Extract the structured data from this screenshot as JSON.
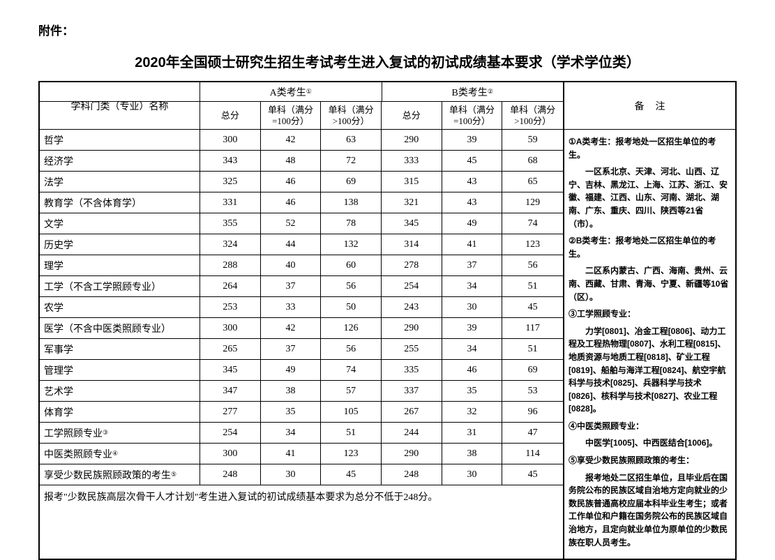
{
  "attachment_label": "附件：",
  "title": "2020年全国硕士研究生招生考试考生进入复试的初试成绩基本要求（学术学位类）",
  "header": {
    "major": "学科门类（专业）名称",
    "group_a": "A类考生",
    "group_a_sup": "①",
    "group_b": "B类考生",
    "group_b_sup": "②",
    "total": "总分",
    "sub100_l1": "单科（满分",
    "sub100_l2": "=100分）",
    "subgt100_l1": "单科（满分",
    "subgt100_l2": ">100分）",
    "remarks": "备注"
  },
  "rows": [
    {
      "major": "哲学",
      "a_total": "300",
      "a_s1": "42",
      "a_s2": "63",
      "b_total": "290",
      "b_s1": "39",
      "b_s2": "59"
    },
    {
      "major": "经济学",
      "a_total": "343",
      "a_s1": "48",
      "a_s2": "72",
      "b_total": "333",
      "b_s1": "45",
      "b_s2": "68"
    },
    {
      "major": "法学",
      "a_total": "325",
      "a_s1": "46",
      "a_s2": "69",
      "b_total": "315",
      "b_s1": "43",
      "b_s2": "65"
    },
    {
      "major": "教育学（不含体育学）",
      "a_total": "331",
      "a_s1": "46",
      "a_s2": "138",
      "b_total": "321",
      "b_s1": "43",
      "b_s2": "129"
    },
    {
      "major": "文学",
      "a_total": "355",
      "a_s1": "52",
      "a_s2": "78",
      "b_total": "345",
      "b_s1": "49",
      "b_s2": "74"
    },
    {
      "major": "历史学",
      "a_total": "324",
      "a_s1": "44",
      "a_s2": "132",
      "b_total": "314",
      "b_s1": "41",
      "b_s2": "123"
    },
    {
      "major": "理学",
      "a_total": "288",
      "a_s1": "40",
      "a_s2": "60",
      "b_total": "278",
      "b_s1": "37",
      "b_s2": "56"
    },
    {
      "major": "工学（不含工学照顾专业）",
      "a_total": "264",
      "a_s1": "37",
      "a_s2": "56",
      "b_total": "254",
      "b_s1": "34",
      "b_s2": "51"
    },
    {
      "major": "农学",
      "a_total": "253",
      "a_s1": "33",
      "a_s2": "50",
      "b_total": "243",
      "b_s1": "30",
      "b_s2": "45"
    },
    {
      "major": "医学（不含中医类照顾专业）",
      "a_total": "300",
      "a_s1": "42",
      "a_s2": "126",
      "b_total": "290",
      "b_s1": "39",
      "b_s2": "117"
    },
    {
      "major": "军事学",
      "a_total": "265",
      "a_s1": "37",
      "a_s2": "56",
      "b_total": "255",
      "b_s1": "34",
      "b_s2": "51"
    },
    {
      "major": "管理学",
      "a_total": "345",
      "a_s1": "49",
      "a_s2": "74",
      "b_total": "335",
      "b_s1": "46",
      "b_s2": "69"
    },
    {
      "major": "艺术学",
      "a_total": "347",
      "a_s1": "38",
      "a_s2": "57",
      "b_total": "337",
      "b_s1": "35",
      "b_s2": "53"
    },
    {
      "major": "体育学",
      "a_total": "277",
      "a_s1": "35",
      "a_s2": "105",
      "b_total": "267",
      "b_s1": "32",
      "b_s2": "96"
    },
    {
      "major": "工学照顾专业",
      "sup": "③",
      "a_total": "254",
      "a_s1": "34",
      "a_s2": "51",
      "b_total": "244",
      "b_s1": "31",
      "b_s2": "47"
    },
    {
      "major": "中医类照顾专业",
      "sup": "④",
      "a_total": "300",
      "a_s1": "41",
      "a_s2": "123",
      "b_total": "290",
      "b_s1": "38",
      "b_s2": "114"
    },
    {
      "major": "享受少数民族照顾政策的考生",
      "sup": "⑤",
      "a_total": "248",
      "a_s1": "30",
      "a_s2": "45",
      "b_total": "248",
      "b_s1": "30",
      "b_s2": "45"
    }
  ],
  "footer": "报考\"少数民族高层次骨干人才计划\"考生进入复试的初试成绩基本要求为总分不低于248分。",
  "remarks": {
    "p1_head": "①A类考生：报考地处一区招生单位的考生。",
    "p1_body": "一区系北京、天津、河北、山西、辽宁、吉林、黑龙江、上海、江苏、浙江、安徽、福建、江西、山东、河南、湖北、湖南、广东、重庆、四川、陕西等21省（市）。",
    "p2_head": "②B类考生：报考地处二区招生单位的考生。",
    "p2_body": "二区系内蒙古、广西、海南、贵州、云南、西藏、甘肃、青海、宁夏、新疆等10省（区）。",
    "p3_head": "③工学照顾专业：",
    "p3_body": "力学[0801]、冶金工程[0806]、动力工程及工程热物理[0807]、水利工程[0815]、地质资源与地质工程[0818]、矿业工程[0819]、船舶与海洋工程[0824]、航空宇航科学与技术[0825]、兵器科学与技术[0826]、核科学与技术[0827]、农业工程[0828]。",
    "p4_head": "④中医类照顾专业：",
    "p4_body": "中医学[1005]、中西医结合[1006]。",
    "p5_head": "⑤享受少数民族照顾政策的考生：",
    "p5_body": "报考地处二区招生单位，且毕业后在国务院公布的民族区域自治地方定向就业的少数民族普通高校应届本科毕业生考生；或者工作单位和户籍在国务院公布的民族区域自治地方，且定向就业单位为原单位的少数民族在职人员考生。"
  }
}
